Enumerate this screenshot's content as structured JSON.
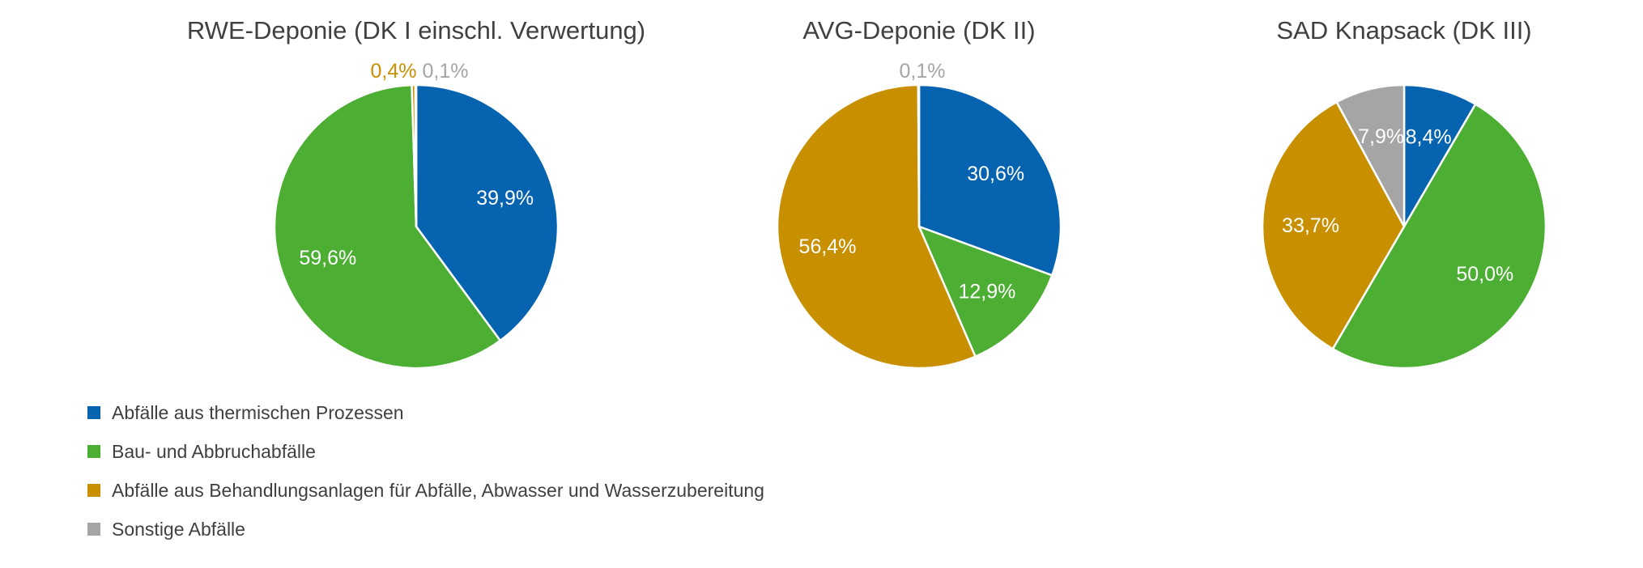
{
  "colors": {
    "series": [
      "#0563b0",
      "#4cae33",
      "#c89000",
      "#a5a5a5"
    ],
    "title_text": "#404040",
    "label_inside": "#ffffff"
  },
  "legend": {
    "placement": "bottom-left",
    "items": [
      {
        "label": "Abfälle aus thermischen Prozessen",
        "color": "#0563b0"
      },
      {
        "label": "Bau- und Abbruchabfälle",
        "color": "#4cae33"
      },
      {
        "label": "Abfälle aus Behandlungsanlagen für Abfälle, Abwasser und Wasserzubereitung",
        "color": "#c89000"
      },
      {
        "label": "Sonstige Abfälle",
        "color": "#a5a5a5"
      }
    ]
  },
  "chart_data": [
    {
      "type": "pie",
      "title": "RWE-Deponie (DK I einschl. Verwertung)",
      "categories": [
        "Abfälle aus thermischen Prozessen",
        "Bau- und Abbruchabfälle",
        "Abfälle aus Behandlungsanlagen für Abfälle, Abwasser und Wasserzubereitung",
        "Sonstige Abfälle"
      ],
      "values": [
        39.9,
        59.6,
        0.4,
        0.1
      ],
      "labels": [
        "39,9%",
        "59,6%",
        "0,4%",
        "0,1%"
      ]
    },
    {
      "type": "pie",
      "title": "AVG-Deponie (DK II)",
      "categories": [
        "Abfälle aus thermischen Prozessen",
        "Bau- und Abbruchabfälle",
        "Abfälle aus Behandlungsanlagen für Abfälle, Abwasser und Wasserzubereitung",
        "Sonstige Abfälle"
      ],
      "values": [
        30.6,
        12.9,
        56.4,
        0.1
      ],
      "labels": [
        "30,6%",
        "12,9%",
        "56,4%",
        "0,1%"
      ]
    },
    {
      "type": "pie",
      "title": "SAD Knapsack (DK III)",
      "categories": [
        "Abfälle aus thermischen Prozessen",
        "Bau- und Abbruchabfälle",
        "Abfälle aus Behandlungsanlagen für Abfälle, Abwasser und Wasserzubereitung",
        "Sonstige Abfälle"
      ],
      "values": [
        8.4,
        50.0,
        33.7,
        7.9
      ],
      "labels": [
        "8,4%",
        "50,0%",
        "33,7%",
        "7,9%"
      ]
    }
  ]
}
